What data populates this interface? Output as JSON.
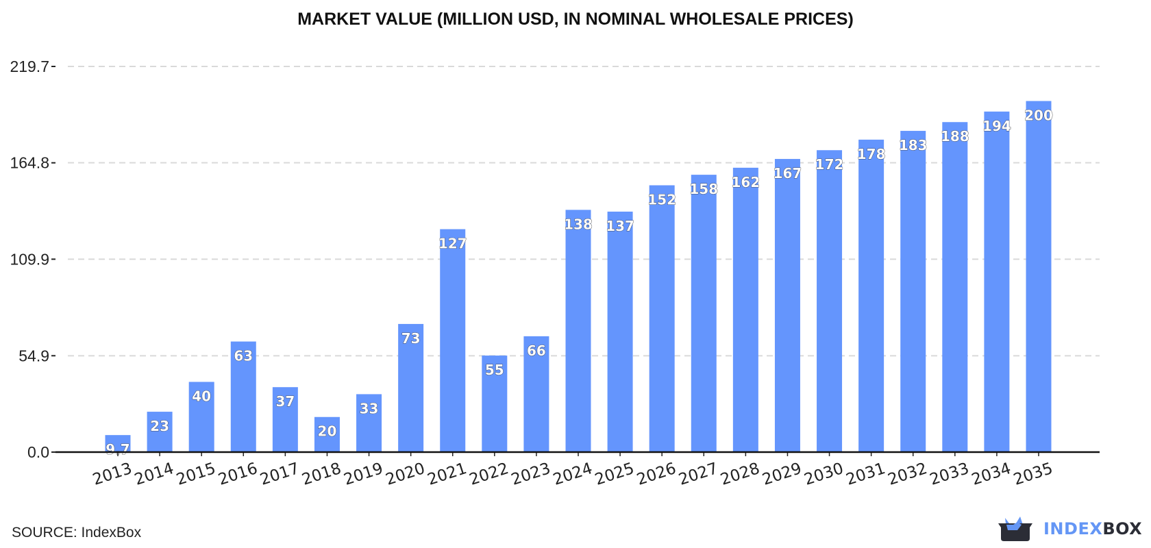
{
  "chart_data": {
    "type": "bar",
    "title": "MARKET VALUE (MILLION USD, IN NOMINAL WHOLESALE PRICES)",
    "categories": [
      "2013",
      "2014",
      "2015",
      "2016",
      "2017",
      "2018",
      "2019",
      "2020",
      "2021",
      "2022",
      "2023",
      "2024",
      "2025",
      "2026",
      "2027",
      "2028",
      "2029",
      "2030",
      "2031",
      "2032",
      "2033",
      "2034",
      "2035"
    ],
    "values": [
      9.7,
      23,
      40,
      63,
      37,
      20,
      33,
      73,
      127,
      55,
      66,
      138,
      137,
      152,
      158,
      162,
      167,
      172,
      178,
      183,
      188,
      194,
      200
    ],
    "data_labels": [
      "9.7",
      "23",
      "40",
      "63",
      "37",
      "20",
      "33",
      "73",
      "127",
      "55",
      "66",
      "138",
      "137",
      "152",
      "158",
      "162",
      "167",
      "172",
      "178",
      "183",
      "188",
      "194",
      "200"
    ],
    "yticks": [
      0.0,
      54.9,
      109.9,
      164.8,
      219.7
    ],
    "ytick_labels": [
      "0.0",
      "54.9",
      "109.9",
      "164.8",
      "219.7"
    ],
    "ylim": [
      0,
      219.7
    ],
    "xlabel": "",
    "ylabel": "",
    "grid": "horizontal dashed",
    "bar_color": "#6495fd"
  },
  "footer": {
    "source": "SOURCE: IndexBox",
    "logo_part1": "INDEX",
    "logo_part2": "BOX",
    "logo_colors": {
      "accent": "#6496f5",
      "dark": "#2b2d36"
    }
  }
}
